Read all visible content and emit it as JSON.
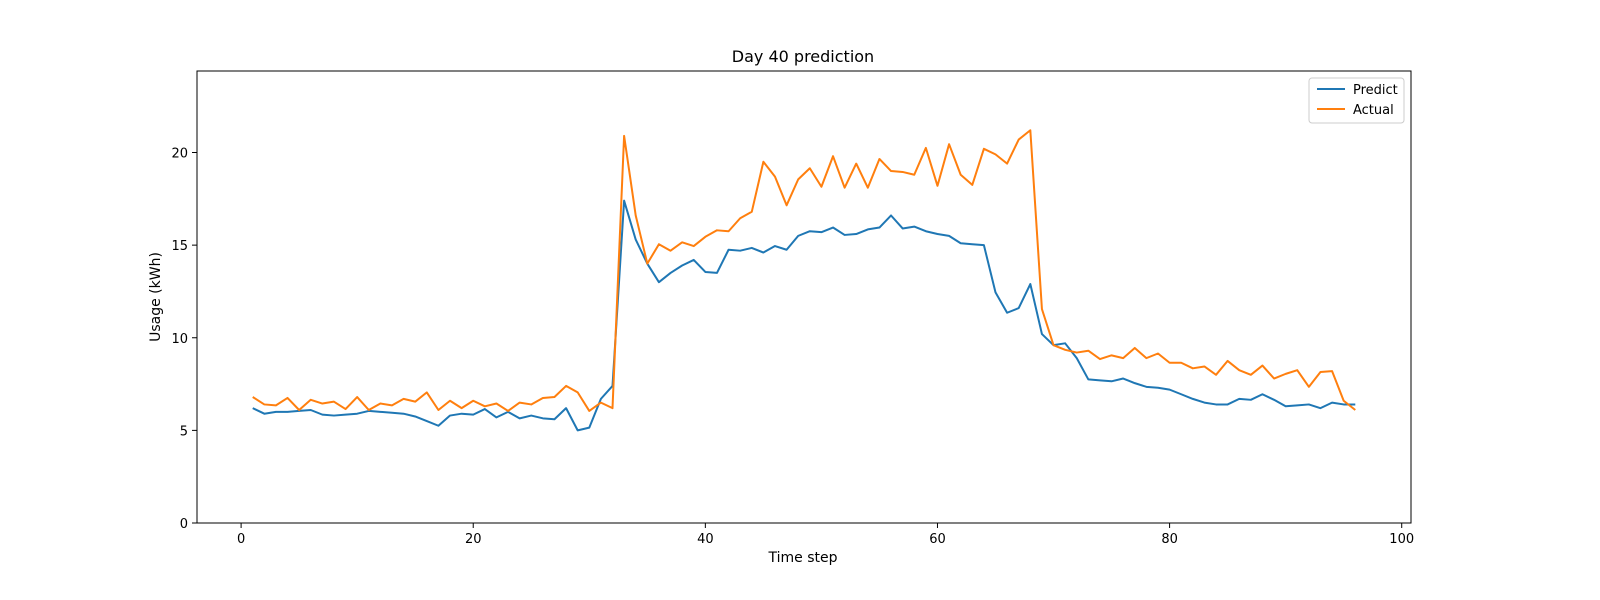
{
  "chart_data": {
    "type": "line",
    "title": "Day 40 prediction",
    "xlabel": "Time step",
    "ylabel": "Usage (kWh)",
    "xlim": [
      -3.8,
      100.8
    ],
    "ylim": [
      0,
      24.4
    ],
    "xticks": [
      0,
      20,
      40,
      60,
      80,
      100
    ],
    "yticks": [
      0,
      5,
      10,
      15,
      20
    ],
    "grid": false,
    "legend_position": "top-right",
    "x": [
      1,
      2,
      3,
      4,
      5,
      6,
      7,
      8,
      9,
      10,
      11,
      12,
      13,
      14,
      15,
      16,
      17,
      18,
      19,
      20,
      21,
      22,
      23,
      24,
      25,
      26,
      27,
      28,
      29,
      30,
      31,
      32,
      33,
      34,
      35,
      36,
      37,
      38,
      39,
      40,
      41,
      42,
      43,
      44,
      45,
      46,
      47,
      48,
      49,
      50,
      51,
      52,
      53,
      54,
      55,
      56,
      57,
      58,
      59,
      60,
      61,
      62,
      63,
      64,
      65,
      66,
      67,
      68,
      69,
      70,
      71,
      72,
      73,
      74,
      75,
      76,
      77,
      78,
      79,
      80,
      81,
      82,
      83,
      84,
      85,
      86,
      87,
      88,
      89,
      90,
      91,
      92,
      93,
      94,
      95,
      96
    ],
    "series": [
      {
        "name": "Predict",
        "color": "#1f77b4",
        "values": [
          6.2,
          5.9,
          6.0,
          6.0,
          6.05,
          6.1,
          5.85,
          5.8,
          5.85,
          5.9,
          6.05,
          6.0,
          5.95,
          5.9,
          5.75,
          5.5,
          5.25,
          5.8,
          5.9,
          5.85,
          6.15,
          5.7,
          6.0,
          5.65,
          5.8,
          5.65,
          5.6,
          6.2,
          5.0,
          5.15,
          6.7,
          7.4,
          17.4,
          15.3,
          14.0,
          13.0,
          13.5,
          13.9,
          14.2,
          13.55,
          13.5,
          14.75,
          14.7,
          14.85,
          14.6,
          14.95,
          14.75,
          15.5,
          15.75,
          15.7,
          15.95,
          15.55,
          15.6,
          15.85,
          15.95,
          16.6,
          15.9,
          16.0,
          15.75,
          15.6,
          15.5,
          15.1,
          15.05,
          15.0,
          12.45,
          11.35,
          11.6,
          12.9,
          10.2,
          9.6,
          9.7,
          8.9,
          7.75,
          7.7,
          7.65,
          7.8,
          7.55,
          7.35,
          7.3,
          7.2,
          6.95,
          6.7,
          6.5,
          6.4,
          6.4,
          6.7,
          6.65,
          6.95,
          6.65,
          6.3,
          6.35,
          6.4,
          6.2,
          6.5,
          6.4,
          6.4
        ]
      },
      {
        "name": "Actual",
        "color": "#ff7f0e",
        "values": [
          6.8,
          6.4,
          6.35,
          6.75,
          6.1,
          6.65,
          6.45,
          6.55,
          6.15,
          6.8,
          6.1,
          6.45,
          6.35,
          6.7,
          6.55,
          7.05,
          6.1,
          6.6,
          6.2,
          6.6,
          6.3,
          6.45,
          6.05,
          6.5,
          6.4,
          6.75,
          6.8,
          7.4,
          7.05,
          6.05,
          6.5,
          6.2,
          20.9,
          16.6,
          14.0,
          15.05,
          14.7,
          15.15,
          14.95,
          15.45,
          15.8,
          15.75,
          16.45,
          16.8,
          19.5,
          18.7,
          17.15,
          18.55,
          19.15,
          18.15,
          19.8,
          18.1,
          19.4,
          18.1,
          19.65,
          19.0,
          18.95,
          18.8,
          20.25,
          18.2,
          20.45,
          18.8,
          18.25,
          20.2,
          19.9,
          19.4,
          20.7,
          21.2,
          11.55,
          9.6,
          9.35,
          9.2,
          9.3,
          8.85,
          9.05,
          8.9,
          9.45,
          8.9,
          9.15,
          8.65,
          8.65,
          8.35,
          8.45,
          8.0,
          8.75,
          8.25,
          8.0,
          8.5,
          7.8,
          8.05,
          8.25,
          7.35,
          8.15,
          8.2,
          6.6,
          6.1
        ]
      }
    ]
  }
}
